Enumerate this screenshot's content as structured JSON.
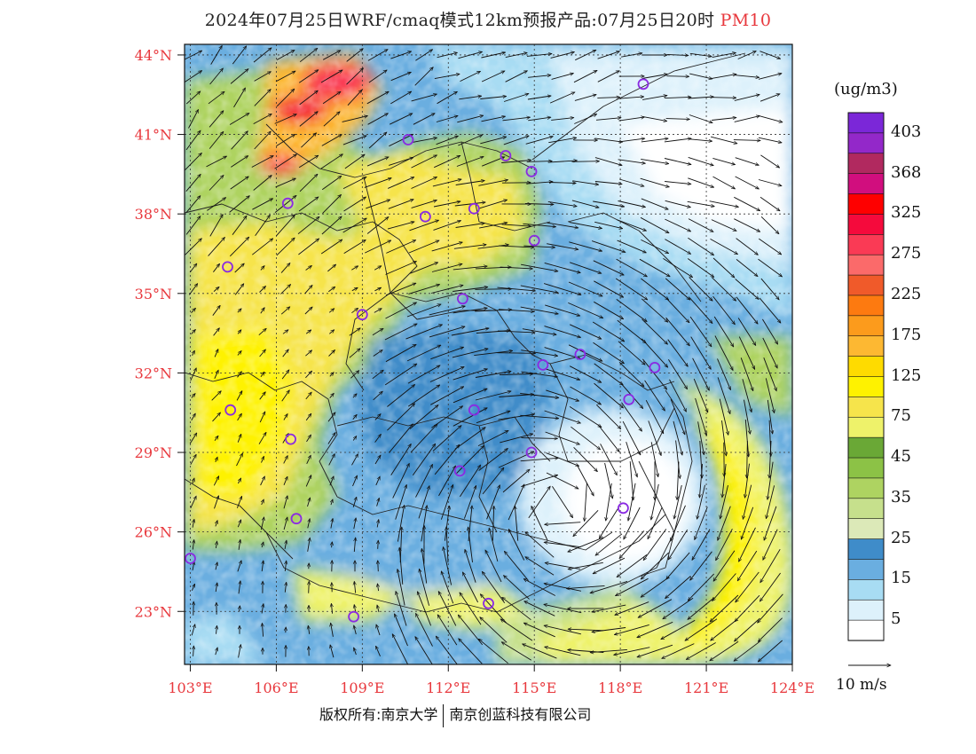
{
  "title": {
    "prefix": "2024年07月25日WRF/cmaq模式12km预报产品:07月25日20时",
    "pollutant": "PM10"
  },
  "map": {
    "lon_min": 102.8,
    "lon_max": 124.0,
    "lat_min": 21.0,
    "lat_max": 44.4,
    "lat_labels": [
      "44°N",
      "41°N",
      "38°N",
      "35°N",
      "32°N",
      "29°N",
      "26°N",
      "23°N"
    ],
    "lat_values": [
      44,
      41,
      38,
      35,
      32,
      29,
      26,
      23
    ],
    "lon_labels": [
      "103°E",
      "106°E",
      "109°E",
      "112°E",
      "115°E",
      "118°E",
      "121°E",
      "124°E"
    ],
    "lon_values": [
      103,
      106,
      109,
      112,
      115,
      118,
      121,
      124
    ],
    "typhoon_center": [
      115.8,
      26.9
    ],
    "stations": [
      [
        118.8,
        42.9
      ],
      [
        110.6,
        40.8
      ],
      [
        114.0,
        40.2
      ],
      [
        114.9,
        39.6
      ],
      [
        106.4,
        38.4
      ],
      [
        111.2,
        37.9
      ],
      [
        112.9,
        38.2
      ],
      [
        115.0,
        37.0
      ],
      [
        104.3,
        36.0
      ],
      [
        109.0,
        34.2
      ],
      [
        112.5,
        34.8
      ],
      [
        115.3,
        32.3
      ],
      [
        116.6,
        32.7
      ],
      [
        119.2,
        32.2
      ],
      [
        118.3,
        31.0
      ],
      [
        104.4,
        30.6
      ],
      [
        112.9,
        30.6
      ],
      [
        106.5,
        29.5
      ],
      [
        114.9,
        29.0
      ],
      [
        112.4,
        28.3
      ],
      [
        118.1,
        26.9
      ],
      [
        106.7,
        26.5
      ],
      [
        103.0,
        25.0
      ],
      [
        108.7,
        22.8
      ],
      [
        113.4,
        23.3
      ]
    ]
  },
  "legend": {
    "unit": "(ug/m3)",
    "colors": [
      "#ffffff",
      "#ddf1fb",
      "#a8dcf3",
      "#6aaee0",
      "#3f8cc9",
      "#dce9b8",
      "#c6e08c",
      "#aed361",
      "#8cc246",
      "#6aa836",
      "#eef26a",
      "#f6e44b",
      "#fef200",
      "#fedb00",
      "#fdb832",
      "#fc9b1c",
      "#fd7a10",
      "#f05a2a",
      "#fb6a6a",
      "#fa3a55",
      "#f50a3c",
      "#fe0000",
      "#d10e7e",
      "#b1295f",
      "#9328c9",
      "#7b27d8"
    ],
    "labels": [
      "403",
      "368",
      "325",
      "275",
      "225",
      "175",
      "125",
      "75",
      "45",
      "35",
      "25",
      "15",
      "5"
    ]
  },
  "wind_reference": {
    "label": "10 m/s"
  },
  "footer": {
    "copyright_left": "版权所有:南京大学",
    "copyright_right": "南京创蓝科技有限公司"
  }
}
